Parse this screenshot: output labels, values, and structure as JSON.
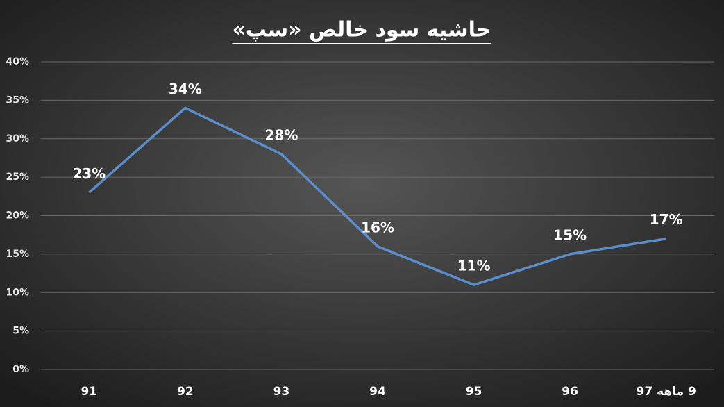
{
  "chart_data": {
    "type": "line",
    "title": "حاشیه سود خالص «سپ»",
    "categories": [
      "91",
      "92",
      "93",
      "94",
      "95",
      "96",
      "9 ماهه 97"
    ],
    "series": [
      {
        "name": "حاشیه سود خالص",
        "color": "#5b8fcb",
        "values": [
          23,
          34,
          28,
          16,
          11,
          15,
          17
        ],
        "value_labels": [
          "23%",
          "34%",
          "28%",
          "16%",
          "11%",
          "15%",
          "17%"
        ]
      }
    ],
    "ylim": [
      0,
      40
    ],
    "yticks": [
      {
        "value": 0,
        "label": "0%"
      },
      {
        "value": 5,
        "label": "5%"
      },
      {
        "value": 10,
        "label": "10%"
      },
      {
        "value": 15,
        "label": "15%"
      },
      {
        "value": 20,
        "label": "20%"
      },
      {
        "value": 25,
        "label": "25%"
      },
      {
        "value": 30,
        "label": "30%"
      },
      {
        "value": 35,
        "label": "35%"
      },
      {
        "value": 40,
        "label": "40%"
      }
    ],
    "grid": true
  }
}
